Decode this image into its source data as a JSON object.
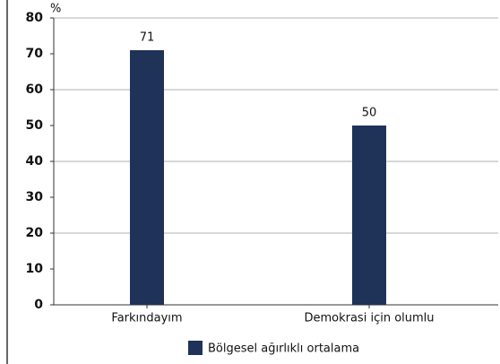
{
  "chart_data": {
    "type": "bar",
    "y_unit": "%",
    "categories": [
      "Farkındayım",
      "Demokrasi için olumlu"
    ],
    "series": [
      {
        "name": "Bölgesel ağırlıklı ortalama",
        "color": "#1f3358",
        "values": [
          71,
          50
        ]
      }
    ],
    "ylim": [
      0,
      80
    ],
    "yticks": [
      0,
      10,
      20,
      30,
      40,
      50,
      60,
      70,
      80
    ],
    "grid": true,
    "legend": "bottom"
  }
}
